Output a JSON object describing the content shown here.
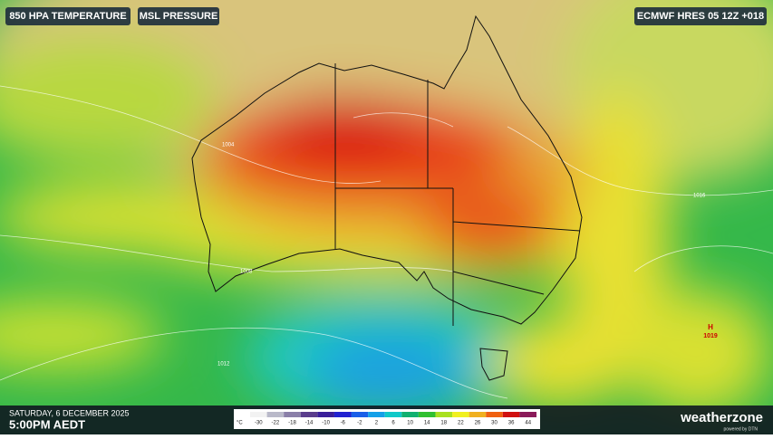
{
  "header": {
    "tags": [
      "850 HPA TEMPERATURE",
      "MSL PRESSURE"
    ],
    "model": "ECMWF HRES 05 12Z +018"
  },
  "map": {
    "high": {
      "symbol": "H",
      "value": "1019"
    },
    "isobar_labels": [
      "1004",
      "1008",
      "1012",
      "1016"
    ]
  },
  "footer": {
    "date": "SATURDAY, 6 DECEMBER 2025",
    "time": "5:00PM AEDT",
    "legend": {
      "unit": "°C",
      "ticks": [
        -30,
        -22,
        -18,
        -14,
        -10,
        -6,
        -2,
        2,
        6,
        10,
        14,
        18,
        22,
        26,
        30,
        36,
        44
      ],
      "colors": [
        "#f2f2f2",
        "#b9b9c9",
        "#8a7fa8",
        "#5a3d8c",
        "#3a1f9a",
        "#2222d0",
        "#1a5fe8",
        "#14a0e8",
        "#10c8c8",
        "#10b070",
        "#30c030",
        "#a8e020",
        "#f0f020",
        "#f0b020",
        "#f06010",
        "#d01010",
        "#8a1a5a"
      ]
    },
    "brand": {
      "name": "weatherzone",
      "tagline": "powered by DTN"
    }
  }
}
